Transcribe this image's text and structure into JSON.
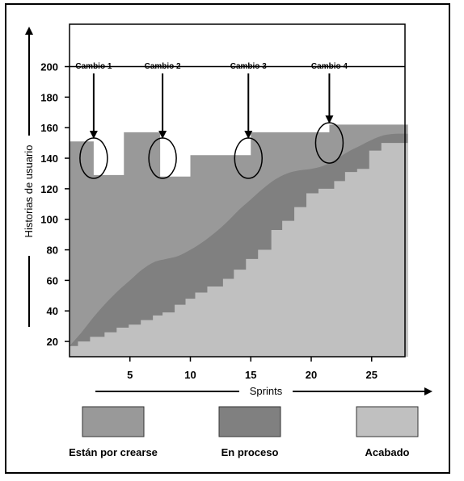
{
  "chart_data": {
    "type": "area",
    "title": "",
    "xlabel": "Sprints",
    "ylabel": "Historias de usuario",
    "xlim": [
      0,
      28
    ],
    "ylim": [
      10,
      220
    ],
    "x_ticks": [
      5,
      10,
      15,
      20,
      25
    ],
    "y_ticks": [
      20,
      40,
      60,
      80,
      100,
      120,
      140,
      160,
      180,
      200
    ],
    "reference_line": 200,
    "legend_placement": "bottom",
    "series": [
      {
        "name": "Están por crearse",
        "color": "#999999",
        "step_total": [
          [
            0,
            151
          ],
          [
            2,
            151
          ],
          [
            2,
            129
          ],
          [
            4.5,
            129
          ],
          [
            4.5,
            157
          ],
          [
            7.5,
            157
          ],
          [
            7.5,
            128
          ],
          [
            10,
            128
          ],
          [
            10,
            142
          ],
          [
            15,
            142
          ],
          [
            15,
            157
          ],
          [
            21.5,
            157
          ],
          [
            21.5,
            162
          ],
          [
            28,
            162
          ]
        ]
      },
      {
        "name": "En proceso",
        "color": "#808080",
        "curve": [
          [
            0,
            17
          ],
          [
            1,
            26
          ],
          [
            2,
            36
          ],
          [
            3,
            45
          ],
          [
            4,
            53
          ],
          [
            5,
            60
          ],
          [
            6,
            67
          ],
          [
            7,
            72
          ],
          [
            8,
            74
          ],
          [
            9,
            76
          ],
          [
            10,
            80
          ],
          [
            11,
            85
          ],
          [
            12,
            91
          ],
          [
            13,
            98
          ],
          [
            14,
            106
          ],
          [
            15,
            113
          ],
          [
            16,
            120
          ],
          [
            17,
            126
          ],
          [
            18,
            130
          ],
          [
            19,
            132
          ],
          [
            20,
            133
          ],
          [
            21,
            135
          ],
          [
            22,
            139
          ],
          [
            23,
            144
          ],
          [
            24,
            148
          ],
          [
            25,
            152
          ],
          [
            26,
            155
          ],
          [
            27,
            156
          ],
          [
            28,
            156
          ]
        ]
      },
      {
        "name": "Acabado",
        "color": "#c0c0c0",
        "steps": [
          [
            0,
            17
          ],
          [
            0.7,
            20
          ],
          [
            1.7,
            23
          ],
          [
            2.9,
            26
          ],
          [
            3.9,
            29
          ],
          [
            4.9,
            31
          ],
          [
            5.9,
            34
          ],
          [
            6.9,
            37
          ],
          [
            7.7,
            39
          ],
          [
            8.7,
            44
          ],
          [
            9.6,
            48
          ],
          [
            10.4,
            52
          ],
          [
            11.4,
            56
          ],
          [
            12.7,
            61
          ],
          [
            13.6,
            67
          ],
          [
            14.6,
            74
          ],
          [
            15.6,
            80
          ],
          [
            16.7,
            93
          ],
          [
            17.6,
            99
          ],
          [
            18.6,
            108
          ],
          [
            19.6,
            117
          ],
          [
            20.6,
            120
          ],
          [
            21.9,
            125
          ],
          [
            22.8,
            131
          ],
          [
            23.8,
            133
          ],
          [
            24.8,
            145
          ],
          [
            25.8,
            150
          ],
          [
            28,
            150
          ]
        ]
      }
    ],
    "annotations": [
      {
        "label": "Cambio 1",
        "x": 2,
        "y": 140
      },
      {
        "label": "Cambio 2",
        "x": 7.7,
        "y": 140
      },
      {
        "label": "Cambio 3",
        "x": 14.8,
        "y": 140
      },
      {
        "label": "Cambio 4",
        "x": 21.5,
        "y": 150
      }
    ]
  }
}
